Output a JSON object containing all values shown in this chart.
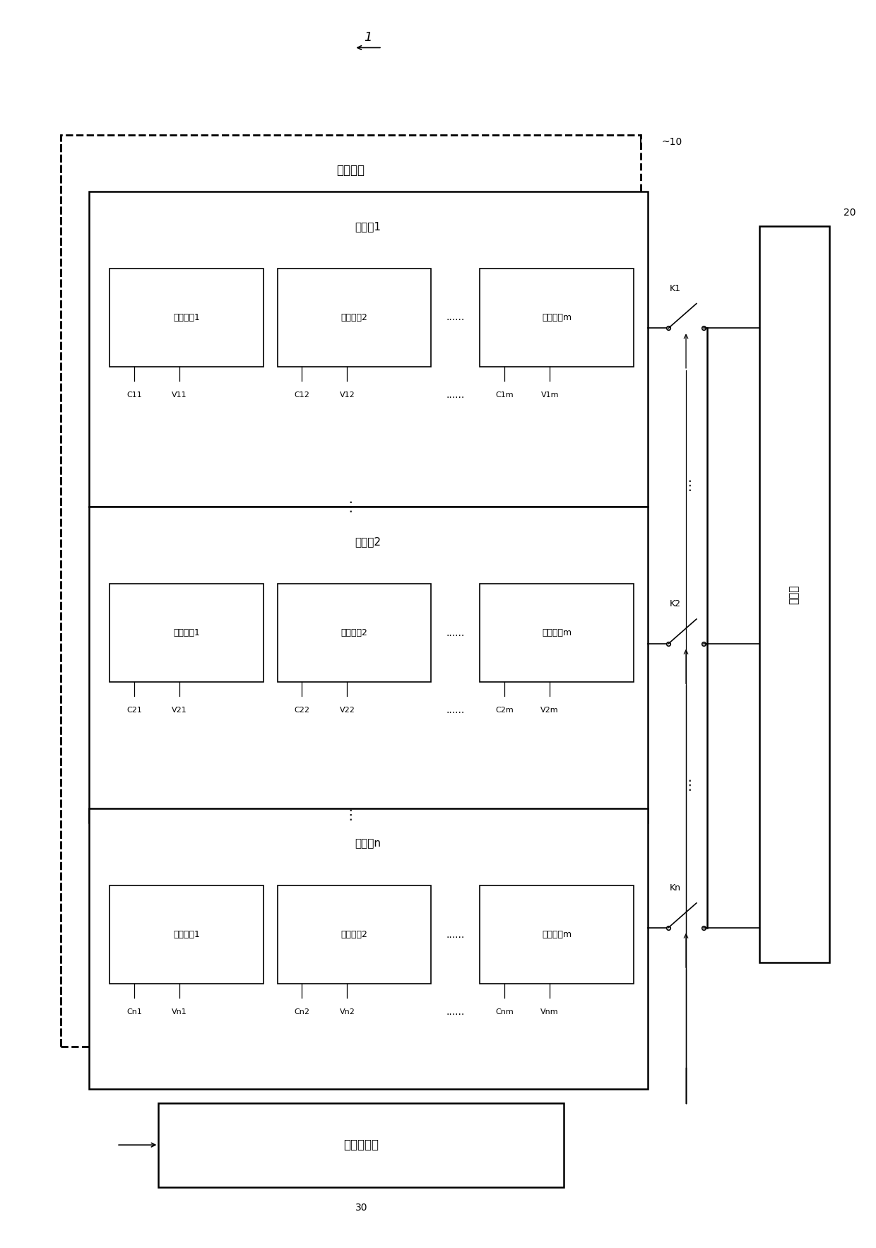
{
  "bg_color": "#ffffff",
  "line_color": "#000000",
  "fig_width": 12.4,
  "fig_height": 17.66,
  "title_label": "1",
  "label_10": "~10",
  "label_20": "20",
  "label_30": "30",
  "outer_box_label": "动力电池",
  "group1_label": "电池组1",
  "group2_label": "电池组2",
  "groupn_label": "电池组n",
  "cell_label": "电池单体1",
  "cell2_label": "电池单体2",
  "cellm_label": "电池单体m",
  "bms_label": "电池管理器",
  "charger_label": "充电器",
  "K1_label": "K1",
  "K2_label": "K2",
  "Kn_label": "Kn",
  "dots_h": "......",
  "dots_v": "⋮",
  "C11": "C11",
  "V11": "V11",
  "C12": "C12",
  "V12": "V12",
  "C1m": "C1m",
  "V1m": "V1m",
  "C21": "C21",
  "V21": "V21",
  "C22": "C22",
  "V22": "V22",
  "C2m": "C2m",
  "V2m": "V2m",
  "Cn1": "Cn1",
  "Vn1": "Vn1",
  "Cn2": "Cn2",
  "Vn2": "Vn2",
  "Cnm": "Cnm",
  "Vnm": "Vnm"
}
